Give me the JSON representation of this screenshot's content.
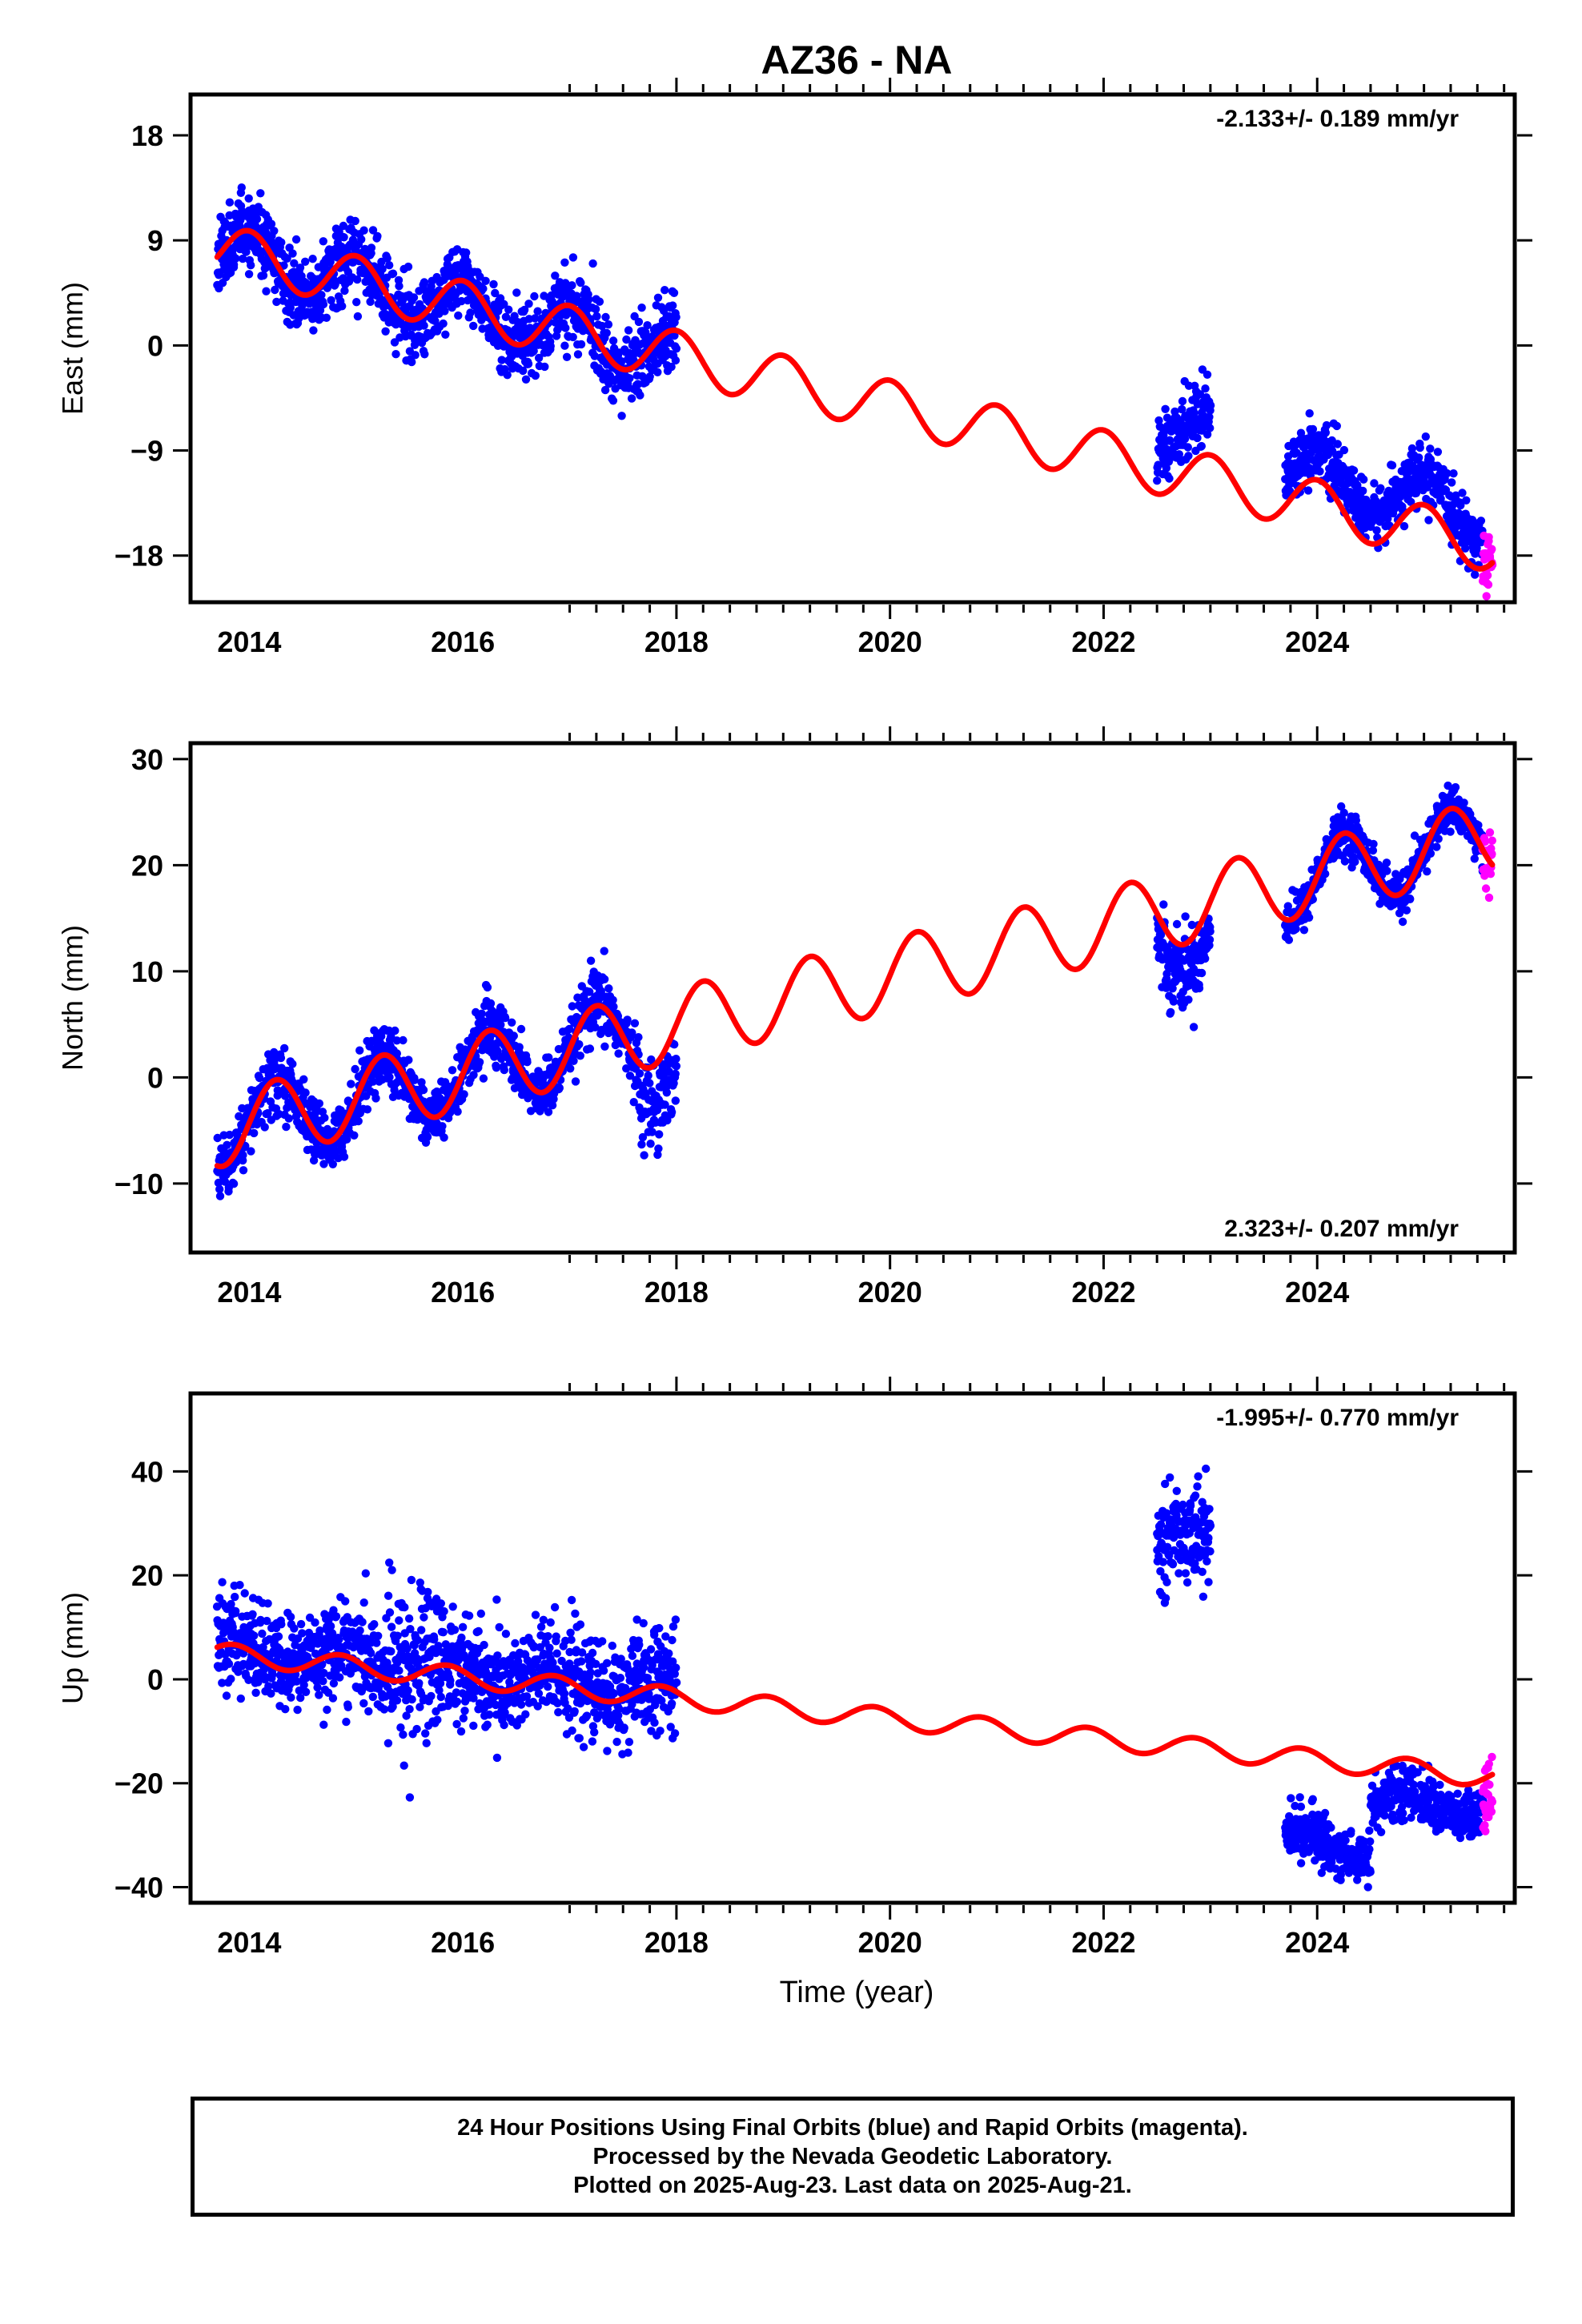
{
  "title": "AZ36 - NA",
  "xlabel": "Time (year)",
  "colors": {
    "final": "#0000ff",
    "rapid": "#ff00ff",
    "model": "#ff0000"
  },
  "caption": [
    "24 Hour Positions Using Final Orbits (blue) and Rapid Orbits (magenta).",
    "Processed by the Nevada Geodetic Laboratory.",
    "Plotted on 2025-Aug-23. Last data on 2025-Aug-21."
  ],
  "chart_data": [
    {
      "type": "scatter",
      "name": "east",
      "ylabel": "East (mm)",
      "rate_label": "-2.133+/- 0.189 mm/yr",
      "rate_position": "top-right",
      "xlim": [
        2013.45,
        2025.85
      ],
      "ylim": [
        -22,
        21.5
      ],
      "xticks": [
        "2014",
        "2016",
        "2018",
        "2020",
        "2022",
        "2024"
      ],
      "yticks": [
        "18",
        "9",
        "0",
        "−9",
        "−18"
      ],
      "ytick_values": [
        18,
        9,
        0,
        -9,
        -18
      ],
      "model": {
        "intercept": 8.25,
        "t0": 2013.7,
        "rate": -2.133,
        "annual_amp": 2.2,
        "annual_phase": 2014.0
      },
      "data_segments": [
        {
          "orbit": "final",
          "start": 2013.7,
          "end": 2018.0,
          "scatter": 1.6,
          "spread_growth": 0
        },
        {
          "orbit": "final",
          "start": 2022.5,
          "end": 2023.0,
          "offset": 4.0,
          "scatter": 1.5,
          "spread_growth": 0
        },
        {
          "orbit": "final",
          "start": 2023.7,
          "end": 2025.55,
          "offset": 2.5,
          "scatter": 1.2,
          "spread_growth": 0
        },
        {
          "orbit": "rapid",
          "start": 2025.55,
          "end": 2025.64,
          "scatter": 1.6,
          "spread_growth": 0
        }
      ]
    },
    {
      "type": "scatter",
      "name": "north",
      "ylabel": "North (mm)",
      "rate_label": "2.323+/- 0.207 mm/yr",
      "rate_position": "bottom-right",
      "xlim": [
        2013.45,
        2025.85
      ],
      "ylim": [
        -16.5,
        31.5
      ],
      "xticks": [
        "2014",
        "2016",
        "2018",
        "2020",
        "2022",
        "2024"
      ],
      "yticks": [
        "30",
        "20",
        "10",
        "0",
        "−10"
      ],
      "ytick_values": [
        30,
        20,
        10,
        0,
        -10
      ],
      "model": {
        "intercept": -5.0,
        "t0": 2013.7,
        "rate": 2.323,
        "annual_amp": 3.5,
        "annual_phase": 2014.25
      },
      "data_segments": [
        {
          "orbit": "final",
          "start": 2013.7,
          "end": 2017.65,
          "scatter": 1.3,
          "spread_growth": 0.35
        },
        {
          "orbit": "final",
          "start": 2017.65,
          "end": 2018.0,
          "offset": -3.5,
          "scatter": 2.0,
          "spread_growth": 0
        },
        {
          "orbit": "final",
          "start": 2022.5,
          "end": 2023.0,
          "offset": -2.5,
          "scatter": 1.8,
          "spread_growth": 0
        },
        {
          "orbit": "final",
          "start": 2023.7,
          "end": 2025.55,
          "scatter": 1.0,
          "spread_growth": 0
        },
        {
          "orbit": "rapid",
          "start": 2025.55,
          "end": 2025.64,
          "scatter": 1.6,
          "spread_growth": 0
        }
      ]
    },
    {
      "type": "scatter",
      "name": "up",
      "ylabel": "Up (mm)",
      "rate_label": "-1.995+/- 0.770 mm/yr",
      "rate_position": "top-right",
      "xlim": [
        2013.45,
        2025.85
      ],
      "ylim": [
        -43,
        55
      ],
      "xticks": [
        "2014",
        "2016",
        "2018",
        "2020",
        "2022",
        "2024"
      ],
      "yticks": [
        "40",
        "20",
        "0",
        "−20",
        "−40"
      ],
      "ytick_values": [
        40,
        20,
        0,
        -20,
        -40
      ],
      "model": {
        "intercept": 5.0,
        "t0": 2013.7,
        "rate": -1.995,
        "annual_amp": 2.0,
        "annual_phase": 2013.85
      },
      "data_segments": [
        {
          "orbit": "final",
          "start": 2013.7,
          "end": 2015.3,
          "offset": 1.0,
          "scatter": 4.5,
          "spread_growth": 0
        },
        {
          "orbit": "final",
          "start": 2015.3,
          "end": 2015.8,
          "offset": 2.0,
          "scatter": 8.0,
          "spread_growth": 0
        },
        {
          "orbit": "final",
          "start": 2015.8,
          "end": 2018.0,
          "offset": 1.0,
          "scatter": 5.0,
          "spread_growth": 0
        },
        {
          "orbit": "final",
          "start": 2022.5,
          "end": 2023.0,
          "offset": 40.0,
          "scatter": 4.5,
          "spread_growth": 0
        },
        {
          "orbit": "final",
          "start": 2023.7,
          "end": 2024.5,
          "offset": -16.0,
          "scatter": 2.5,
          "spread_growth": 0
        },
        {
          "orbit": "final",
          "start": 2024.5,
          "end": 2025.55,
          "offset": -6.5,
          "scatter": 2.4,
          "spread_growth": 0
        },
        {
          "orbit": "rapid",
          "start": 2025.55,
          "end": 2025.64,
          "offset": -4.0,
          "scatter": 4.0,
          "spread_growth": 0
        }
      ]
    }
  ]
}
